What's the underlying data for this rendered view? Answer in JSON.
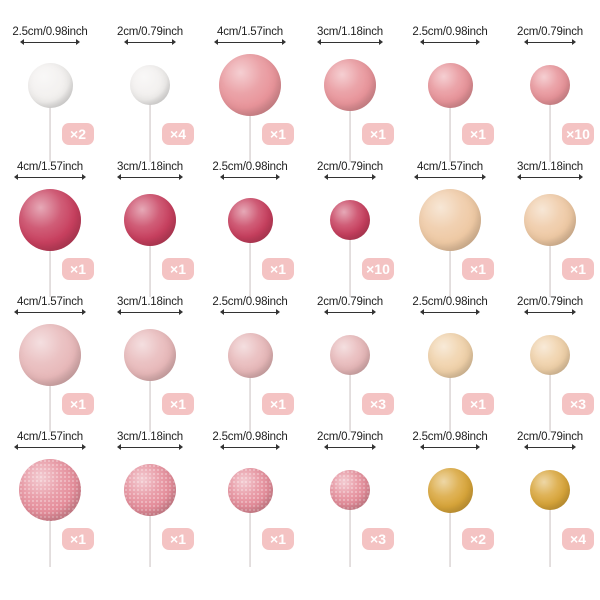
{
  "rows": [
    [
      {
        "label": "2.5cm/0.98inch",
        "qty": "×2",
        "finish": "white-pearl",
        "color": "#f2f0ee"
      },
      {
        "label": "2cm/0.79inch",
        "qty": "×4",
        "finish": "white-pearl",
        "color": "#f2f0ee"
      },
      {
        "label": "4cm/1.57inch",
        "qty": "×1",
        "finish": "pink-pearl",
        "color": "#e8949a"
      },
      {
        "label": "3cm/1.18inch",
        "qty": "×1",
        "finish": "pink-pearl",
        "color": "#e8949a"
      },
      {
        "label": "2.5cm/0.98inch",
        "qty": "×1",
        "finish": "pink-pearl",
        "color": "#e8949a"
      },
      {
        "label": "2cm/0.79inch",
        "qty": "×10",
        "finish": "pink-pearl",
        "color": "#e8949a"
      }
    ],
    [
      {
        "label": "4cm/1.57inch",
        "qty": "×1",
        "finish": "rose-red",
        "color": "#c8405f"
      },
      {
        "label": "3cm/1.18inch",
        "qty": "×1",
        "finish": "rose-red",
        "color": "#c8405f"
      },
      {
        "label": "2.5cm/0.98inch",
        "qty": "×1",
        "finish": "rose-red",
        "color": "#c8405f"
      },
      {
        "label": "2cm/0.79inch",
        "qty": "×10",
        "finish": "rose-red",
        "color": "#c8405f"
      },
      {
        "label": "4cm/1.57inch",
        "qty": "×1",
        "finish": "champagne",
        "color": "#eec9a4"
      },
      {
        "label": "3cm/1.18inch",
        "qty": "×1",
        "finish": "champagne",
        "color": "#eec9a4"
      }
    ],
    [
      {
        "label": "4cm/1.57inch",
        "qty": "×1",
        "finish": "light-pink",
        "color": "#e7b8b9"
      },
      {
        "label": "3cm/1.18inch",
        "qty": "×1",
        "finish": "light-pink",
        "color": "#e7b8b9"
      },
      {
        "label": "2.5cm/0.98inch",
        "qty": "×1",
        "finish": "light-pink",
        "color": "#e7b8b9"
      },
      {
        "label": "2cm/0.79inch",
        "qty": "×3",
        "finish": "light-pink",
        "color": "#e7b8b9"
      },
      {
        "label": "2.5cm/0.98inch",
        "qty": "×1",
        "finish": "light-champagne",
        "color": "#f0d1a9"
      },
      {
        "label": "2cm/0.79inch",
        "qty": "×3",
        "finish": "light-champagne",
        "color": "#f0d1a9"
      }
    ],
    [
      {
        "label": "4cm/1.57inch",
        "qty": "×1",
        "finish": "pink-glitter",
        "color": "#e58e9b"
      },
      {
        "label": "3cm/1.18inch",
        "qty": "×1",
        "finish": "pink-glitter",
        "color": "#e58e9b"
      },
      {
        "label": "2.5cm/0.98inch",
        "qty": "×1",
        "finish": "pink-glitter",
        "color": "#e58e9b"
      },
      {
        "label": "2cm/0.79inch",
        "qty": "×3",
        "finish": "pink-glitter",
        "color": "#e58e9b"
      },
      {
        "label": "2.5cm/0.98inch",
        "qty": "×2",
        "finish": "gold",
        "color": "#d9a63a"
      },
      {
        "label": "2cm/0.79inch",
        "qty": "×4",
        "finish": "gold",
        "color": "#d9a63a"
      }
    ]
  ]
}
